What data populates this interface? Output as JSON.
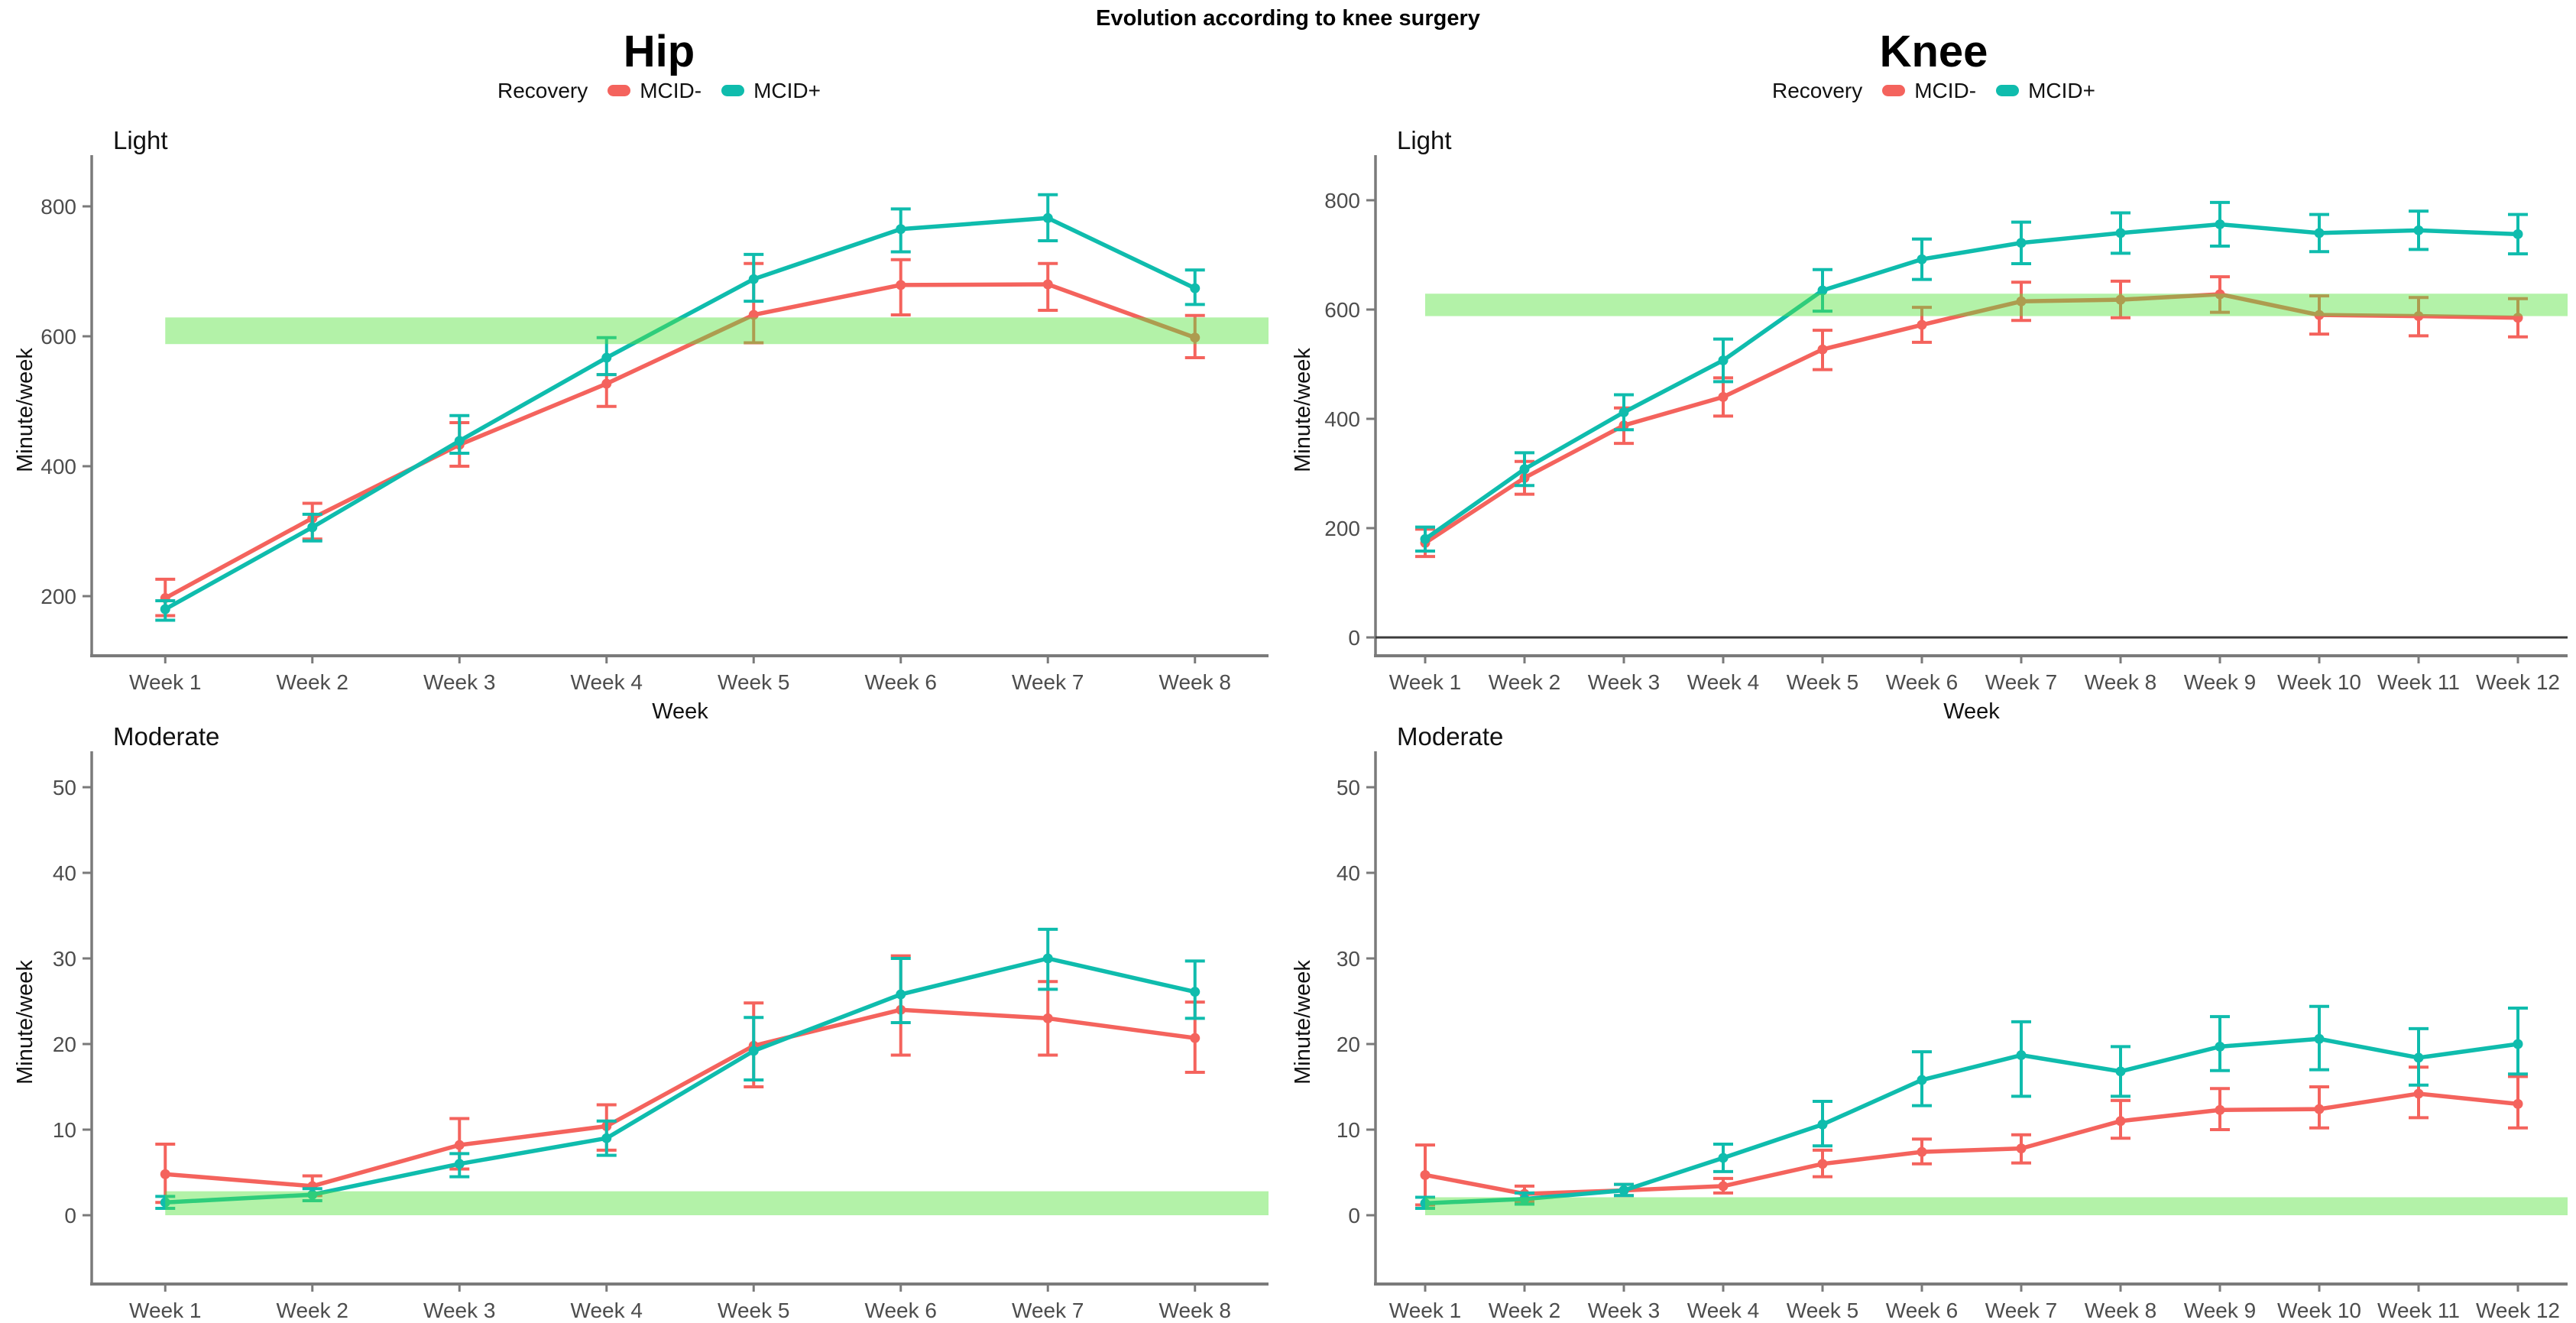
{
  "title": "Evolution according to knee surgery",
  "columns": [
    {
      "title": "Hip",
      "legend": {
        "label": "Recovery",
        "series": [
          {
            "name": "MCID-",
            "color": "#F4635D"
          },
          {
            "name": "MCID+",
            "color": "#0FBCAD"
          }
        ]
      }
    },
    {
      "title": "Knee",
      "legend": {
        "label": "Recovery",
        "series": [
          {
            "name": "MCID-",
            "color": "#F4635D"
          },
          {
            "name": "MCID+",
            "color": "#0FBCAD"
          }
        ]
      }
    }
  ],
  "style": {
    "red": "#F4635D",
    "teal": "#0FBCAD",
    "band_rgb": "87,227,62",
    "band_alpha": 0.45,
    "axis_color": "#7a7a7a",
    "tick_text_color": "#4d4d4d",
    "zero_line_color": "#3c3c3c"
  },
  "chart_data": [
    {
      "id": "hip-light",
      "type": "line",
      "column": "Hip",
      "panel_label": "Light",
      "xlabel": "Week",
      "ylabel": "Minute/week",
      "categories": [
        "Week 1",
        "Week 2",
        "Week 3",
        "Week 4",
        "Week 5",
        "Week 6",
        "Week 7",
        "Week 8"
      ],
      "yticks": [
        200,
        400,
        600,
        800
      ],
      "ylim": [
        108,
        865
      ],
      "zero_line": false,
      "band": {
        "y_min": 588,
        "y_max": 629,
        "from_week": 1,
        "meaning": "green reference band"
      },
      "series": [
        {
          "name": "MCID-",
          "color": "#F4635D",
          "values": [
            197,
            320,
            433,
            527,
            633,
            679,
            680,
            598
          ],
          "err_low": [
            170,
            288,
            400,
            492,
            590,
            633,
            640,
            567
          ],
          "err_high": [
            226,
            343,
            467,
            541,
            712,
            718,
            712,
            632
          ]
        },
        {
          "name": "MCID+",
          "color": "#0FBCAD",
          "values": [
            180,
            306,
            439,
            567,
            688,
            765,
            782,
            674
          ],
          "err_low": [
            163,
            285,
            420,
            541,
            654,
            730,
            747,
            649
          ],
          "err_high": [
            193,
            326,
            478,
            598,
            726,
            796,
            818,
            702
          ]
        }
      ]
    },
    {
      "id": "knee-light",
      "type": "line",
      "column": "Knee",
      "panel_label": "Light",
      "xlabel": "Week",
      "ylabel": "Minute/week",
      "categories": [
        "Week 1",
        "Week 2",
        "Week 3",
        "Week 4",
        "Week 5",
        "Week 6",
        "Week 7",
        "Week 8",
        "Week 9",
        "Week 10",
        "Week 11",
        "Week 12"
      ],
      "yticks": [
        0,
        200,
        400,
        600,
        800
      ],
      "ylim": [
        -34,
        866
      ],
      "zero_line": true,
      "band": {
        "y_min": 588,
        "y_max": 629,
        "from_week": 1,
        "meaning": "green reference band"
      },
      "series": [
        {
          "name": "MCID-",
          "color": "#F4635D",
          "values": [
            173,
            292,
            388,
            440,
            527,
            572,
            615,
            618,
            628,
            590,
            588,
            585
          ],
          "err_low": [
            148,
            262,
            355,
            405,
            490,
            540,
            580,
            585,
            595,
            555,
            552,
            550
          ],
          "err_high": [
            198,
            322,
            420,
            475,
            562,
            604,
            650,
            652,
            660,
            625,
            622,
            620
          ]
        },
        {
          "name": "MCID+",
          "color": "#0FBCAD",
          "values": [
            180,
            308,
            412,
            507,
            635,
            692,
            722,
            740,
            756,
            740,
            745,
            738
          ],
          "err_low": [
            158,
            278,
            380,
            468,
            597,
            655,
            684,
            703,
            716,
            706,
            710,
            702
          ],
          "err_high": [
            202,
            338,
            444,
            546,
            673,
            729,
            760,
            777,
            796,
            774,
            780,
            774
          ]
        }
      ]
    },
    {
      "id": "hip-moderate",
      "type": "line",
      "column": "Hip",
      "panel_label": "Moderate",
      "xlabel": "Week",
      "ylabel": "Minute/week",
      "categories": [
        "Week 1",
        "Week 2",
        "Week 3",
        "Week 4",
        "Week 5",
        "Week 6",
        "Week 7",
        "Week 8"
      ],
      "yticks": [
        0,
        10,
        20,
        30,
        40,
        50
      ],
      "ylim": [
        -8,
        53
      ],
      "zero_line": false,
      "band": {
        "y_min": 0,
        "y_max": 2.8,
        "from_week": 1,
        "meaning": "green reference band"
      },
      "series": [
        {
          "name": "MCID-",
          "color": "#F4635D",
          "values": [
            4.8,
            3.4,
            8.2,
            10.4,
            19.8,
            24.0,
            23.0,
            20.7
          ],
          "err_low": [
            1.5,
            2.3,
            5.4,
            7.6,
            15.0,
            18.7,
            18.7,
            16.7
          ],
          "err_high": [
            8.3,
            4.6,
            11.3,
            12.9,
            24.8,
            30.3,
            27.3,
            24.9
          ]
        },
        {
          "name": "MCID+",
          "color": "#0FBCAD",
          "values": [
            1.5,
            2.4,
            6.0,
            9.0,
            19.2,
            25.8,
            30.0,
            26.1
          ],
          "err_low": [
            0.8,
            1.7,
            4.5,
            7.0,
            15.8,
            22.5,
            26.4,
            23.0
          ],
          "err_high": [
            2.2,
            3.1,
            7.2,
            11.0,
            23.1,
            30.0,
            33.4,
            29.7
          ]
        }
      ]
    },
    {
      "id": "knee-moderate",
      "type": "line",
      "column": "Knee",
      "panel_label": "Moderate",
      "xlabel": "Week",
      "ylabel": "Minute/week",
      "categories": [
        "Week 1",
        "Week 2",
        "Week 3",
        "Week 4",
        "Week 5",
        "Week 6",
        "Week 7",
        "Week 8",
        "Week 9",
        "Week 10",
        "Week 11",
        "Week 12"
      ],
      "yticks": [
        0,
        10,
        20,
        30,
        40,
        50
      ],
      "ylim": [
        -8,
        53
      ],
      "zero_line": false,
      "band": {
        "y_min": 0,
        "y_max": 2.1,
        "from_week": 1,
        "meaning": "green reference band"
      },
      "series": [
        {
          "name": "MCID-",
          "color": "#F4635D",
          "values": [
            4.7,
            2.5,
            2.9,
            3.4,
            6.0,
            7.4,
            7.8,
            11.0,
            12.3,
            12.4,
            14.2,
            13.0
          ],
          "err_low": [
            1.2,
            1.6,
            2.3,
            2.6,
            4.5,
            6.0,
            6.1,
            9.0,
            10.0,
            10.2,
            11.4,
            10.2
          ],
          "err_high": [
            8.2,
            3.4,
            3.6,
            4.3,
            7.6,
            8.9,
            9.4,
            13.4,
            14.8,
            15.0,
            17.3,
            16.2
          ]
        },
        {
          "name": "MCID+",
          "color": "#0FBCAD",
          "values": [
            1.4,
            1.9,
            2.9,
            6.7,
            10.6,
            15.8,
            18.7,
            16.8,
            19.7,
            20.6,
            18.4,
            20.0
          ],
          "err_low": [
            0.8,
            1.3,
            2.3,
            5.1,
            8.1,
            12.8,
            13.9,
            13.9,
            16.9,
            17.0,
            15.2,
            16.5
          ],
          "err_high": [
            2.1,
            2.6,
            3.6,
            8.3,
            13.3,
            19.1,
            22.6,
            19.7,
            23.2,
            24.4,
            21.8,
            24.2
          ]
        }
      ]
    }
  ]
}
